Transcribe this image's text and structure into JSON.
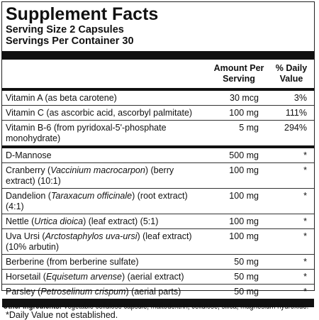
{
  "title": "Supplement Facts",
  "serving_size": "Serving Size 2 Capsules",
  "servings_per_container": "Servings Per Container 30",
  "header": {
    "amount": "Amount Per Serving",
    "daily_value": "% Daily Value"
  },
  "sections": [
    {
      "rows": [
        {
          "name": [
            {
              "text": "Vitamin A (as beta carotene)"
            }
          ],
          "amount": "30 mcg",
          "daily_value": "3%"
        },
        {
          "name": [
            {
              "text": "Vitamin C (as ascorbic acid, ascorbyl palmitate)"
            }
          ],
          "amount": "100 mg",
          "daily_value": "111%"
        },
        {
          "name": [
            {
              "text": "Vitamin B-6 (from pyridoxal-5'-phosphate monohydrate)"
            }
          ],
          "amount": "5 mg",
          "daily_value": "294%"
        }
      ]
    },
    {
      "rows": [
        {
          "name": [
            {
              "text": "D-Mannose"
            }
          ],
          "amount": "500 mg",
          "daily_value": "*"
        },
        {
          "name": [
            {
              "text": "Cranberry ("
            },
            {
              "text": "Vaccinium macrocarpon",
              "italic": true
            },
            {
              "text": ") (berry extract) (10:1)"
            }
          ],
          "amount": "100 mg",
          "daily_value": "*"
        },
        {
          "name": [
            {
              "text": "Dandelion ("
            },
            {
              "text": "Taraxacum officinale",
              "italic": true
            },
            {
              "text": ") (root extract) (4:1)"
            }
          ],
          "amount": "100 mg",
          "daily_value": "*"
        },
        {
          "name": [
            {
              "text": "Nettle ("
            },
            {
              "text": "Urtica dioica",
              "italic": true
            },
            {
              "text": ") (leaf extract) (5:1)"
            }
          ],
          "amount": "100 mg",
          "daily_value": "*"
        },
        {
          "name": [
            {
              "text": "Uva Ursi ("
            },
            {
              "text": "Arctostaphylos uva-ursi",
              "italic": true
            },
            {
              "text": ") (leaf extract) (10% arbutin)"
            }
          ],
          "amount": "100 mg",
          "daily_value": "*"
        },
        {
          "name": [
            {
              "text": "Berberine (from berberine sulfate)"
            }
          ],
          "amount": "50 mg",
          "daily_value": "*"
        },
        {
          "name": [
            {
              "text": "Horsetail ("
            },
            {
              "text": "Equisetum arvense",
              "italic": true
            },
            {
              "text": ") (aerial extract)"
            }
          ],
          "amount": "50 mg",
          "daily_value": "*"
        },
        {
          "name": [
            {
              "text": "Parsley ("
            },
            {
              "text": "Petroselinum crispum",
              "italic": true
            },
            {
              "text": ") (aerial parts)"
            }
          ],
          "amount": "50 mg",
          "daily_value": "*"
        }
      ]
    }
  ],
  "footnote": "*Daily Value not established.",
  "other_ingredients": {
    "label": "Other Ingredients:",
    "text": "Vegetable cellulose capsule, maltodextrin, cellulose, silica, magnesium hydroxide."
  }
}
